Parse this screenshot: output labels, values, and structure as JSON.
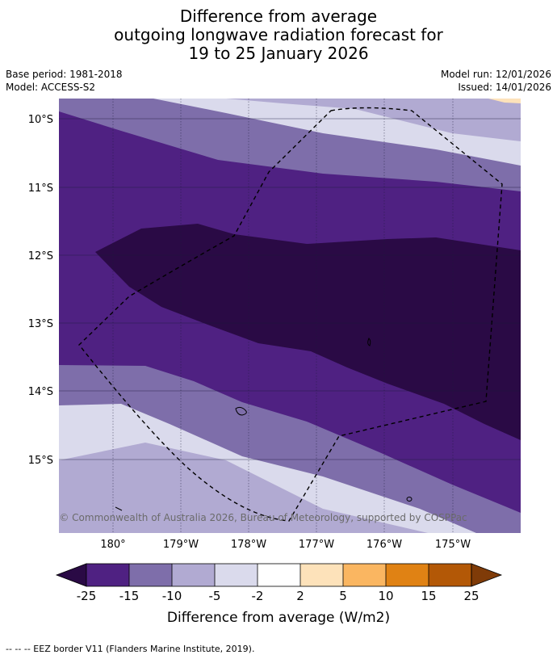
{
  "title": {
    "line1": "Difference from average",
    "line2": "outgoing longwave radiation forecast for",
    "line3": "19 to 25 January 2026"
  },
  "meta": {
    "base_period": "Base period: 1981-2018",
    "model": "Model: ACCESS-S2",
    "model_run": "Model run: 12/01/2026",
    "issued": "Issued: 14/01/2026"
  },
  "map": {
    "lat_labels": [
      "10°S",
      "11°S",
      "12°S",
      "13°S",
      "14°S",
      "15°S"
    ],
    "lon_labels": [
      "180°",
      "179°W",
      "178°W",
      "177°W",
      "176°W",
      "175°W"
    ],
    "copyright": "© Commonwealth of Australia 2026, Bureau of Meteorology, supported by COSPPac"
  },
  "colorbar": {
    "tick_labels": [
      "-25",
      "-15",
      "-10",
      "-5",
      "-2",
      "2",
      "5",
      "10",
      "15",
      "25"
    ],
    "label": "Difference from average (W/m2)",
    "colors": {
      "under": "#2a0a45",
      "bins": [
        "#4f2182",
        "#7e6eaa",
        "#b1aad2",
        "#dadaec",
        "#ffffff",
        "#fde2ba",
        "#fab661",
        "#e08214",
        "#b35806"
      ],
      "over": "#7f3b08"
    }
  },
  "footer": {
    "eez_note": "--  --  -- EEZ border V11 (Flanders Marine Institute, 2019)."
  }
}
